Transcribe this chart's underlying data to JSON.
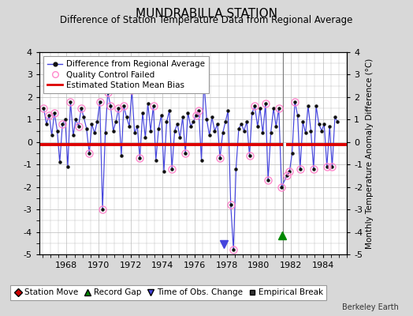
{
  "title": "MUNDRABILLA STATION",
  "subtitle": "Difference of Station Temperature Data from Regional Average",
  "ylabel": "Monthly Temperature Anomaly Difference (°C)",
  "xlabel_years": [
    1968,
    1970,
    1972,
    1974,
    1976,
    1978,
    1980,
    1982,
    1984
  ],
  "ylim": [
    -5,
    4
  ],
  "yticks": [
    -5,
    -4,
    -3,
    -2,
    -1,
    0,
    1,
    2,
    3,
    4
  ],
  "mean_bias": -0.1,
  "mean_bias_color": "#dd0000",
  "mean_bias_x1": 1966.3,
  "mean_bias_x2": 1981.5,
  "mean_bias_x3": 1981.7,
  "mean_bias_x4": 1985.5,
  "line_color": "#4444dd",
  "marker_color": "#111111",
  "qc_failed_color": "#ff88cc",
  "bg_color": "#d8d8d8",
  "plot_bg_color": "#ffffff",
  "grid_color": "#bbbbbb",
  "vline_x": 1981.5,
  "record_gap_x": 1981.45,
  "record_gap_y": -4.15,
  "obs_change_x": 1977.83,
  "obs_change_y": -4.55,
  "xmin": 1966.3,
  "xmax": 1985.5,
  "years": [
    1966.58,
    1966.75,
    1966.92,
    1967.08,
    1967.25,
    1967.42,
    1967.58,
    1967.75,
    1967.92,
    1968.08,
    1968.25,
    1968.42,
    1968.58,
    1968.75,
    1968.92,
    1969.08,
    1969.25,
    1969.42,
    1969.58,
    1969.75,
    1969.92,
    1970.08,
    1970.25,
    1970.42,
    1970.58,
    1970.75,
    1970.92,
    1971.08,
    1971.25,
    1971.42,
    1971.58,
    1971.75,
    1971.92,
    1972.08,
    1972.25,
    1972.42,
    1972.58,
    1972.75,
    1972.92,
    1973.08,
    1973.25,
    1973.42,
    1973.58,
    1973.75,
    1973.92,
    1974.08,
    1974.25,
    1974.42,
    1974.58,
    1974.75,
    1974.92,
    1975.08,
    1975.25,
    1975.42,
    1975.58,
    1975.75,
    1975.92,
    1976.08,
    1976.25,
    1976.42,
    1976.58,
    1976.75,
    1976.92,
    1977.08,
    1977.25,
    1977.42,
    1977.58,
    1977.75,
    1977.92,
    1978.08,
    1978.25,
    1978.42,
    1978.58,
    1978.75,
    1978.92,
    1979.08,
    1979.25,
    1979.42,
    1979.58,
    1979.75,
    1979.92,
    1980.08,
    1980.25,
    1980.42,
    1980.58,
    1980.75,
    1980.92,
    1981.08,
    1981.25,
    1981.42,
    1981.75,
    1981.92,
    1982.08,
    1982.25,
    1982.42,
    1982.58,
    1982.75,
    1982.92,
    1983.08,
    1983.25,
    1983.42,
    1983.58,
    1983.75,
    1983.92,
    1984.08,
    1984.25,
    1984.42,
    1984.58,
    1984.75,
    1984.92
  ],
  "values": [
    1.5,
    0.8,
    1.2,
    0.3,
    1.3,
    0.5,
    -0.9,
    0.8,
    1.0,
    -1.1,
    1.8,
    0.3,
    1.0,
    0.7,
    1.5,
    1.1,
    0.6,
    -0.5,
    0.8,
    0.4,
    0.9,
    1.8,
    -3.0,
    0.4,
    2.2,
    1.6,
    0.5,
    0.9,
    1.5,
    -0.6,
    1.6,
    1.1,
    0.7,
    2.3,
    0.4,
    0.7,
    -0.7,
    1.3,
    0.2,
    1.7,
    0.5,
    1.6,
    -0.8,
    0.6,
    1.2,
    -1.3,
    0.9,
    1.4,
    -1.2,
    0.5,
    0.8,
    0.2,
    1.1,
    -0.5,
    1.3,
    0.7,
    0.9,
    1.2,
    1.4,
    -0.8,
    2.7,
    1.0,
    0.3,
    1.1,
    0.5,
    0.8,
    -0.7,
    0.4,
    0.9,
    1.4,
    -2.8,
    -4.8,
    -1.2,
    0.6,
    0.8,
    0.5,
    0.9,
    -0.6,
    1.3,
    1.6,
    0.7,
    1.5,
    0.4,
    1.7,
    -1.7,
    0.4,
    1.5,
    0.7,
    1.5,
    -2.0,
    -1.5,
    -1.3,
    -0.5,
    1.8,
    1.2,
    -1.2,
    0.9,
    0.4,
    1.6,
    0.5,
    -1.2,
    1.6,
    0.8,
    0.5,
    0.8,
    -1.1,
    0.7,
    -1.1,
    1.1,
    0.9
  ],
  "qc_failed_mask": [
    true,
    false,
    true,
    false,
    true,
    false,
    false,
    true,
    false,
    false,
    true,
    false,
    false,
    true,
    true,
    false,
    false,
    true,
    false,
    false,
    false,
    true,
    true,
    false,
    true,
    true,
    false,
    false,
    true,
    false,
    true,
    false,
    false,
    true,
    false,
    false,
    true,
    false,
    false,
    false,
    false,
    true,
    false,
    false,
    false,
    false,
    false,
    false,
    true,
    false,
    false,
    false,
    false,
    true,
    false,
    false,
    false,
    true,
    true,
    false,
    true,
    false,
    false,
    false,
    false,
    false,
    true,
    false,
    false,
    false,
    true,
    true,
    false,
    false,
    false,
    false,
    false,
    true,
    false,
    true,
    false,
    false,
    false,
    true,
    true,
    false,
    false,
    false,
    true,
    true,
    true,
    true,
    false,
    true,
    false,
    true,
    false,
    false,
    false,
    false,
    true,
    false,
    false,
    false,
    false,
    true,
    false,
    true,
    false,
    false
  ],
  "legend1_labels": [
    "Difference from Regional Average",
    "Quality Control Failed",
    "Estimated Station Mean Bias"
  ],
  "legend2_labels": [
    "Station Move",
    "Record Gap",
    "Time of Obs. Change",
    "Empirical Break"
  ],
  "legend2_colors": [
    "#cc0000",
    "#008800",
    "#4444dd",
    "#333333"
  ],
  "berkeley_earth_text": "Berkeley Earth",
  "title_fontsize": 11,
  "subtitle_fontsize": 8.5,
  "tick_fontsize": 8,
  "legend_fontsize": 7.5
}
